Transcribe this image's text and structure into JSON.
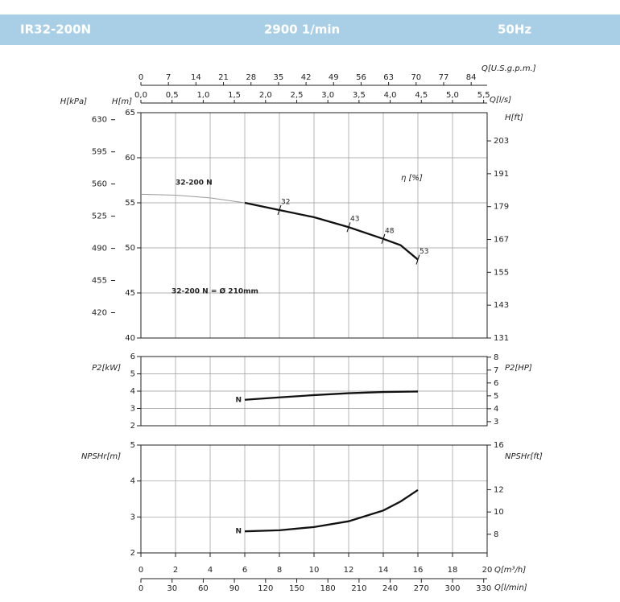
{
  "header": {
    "title": "IR32-200N",
    "speed": "2900 1/min",
    "frequency": "50Hz"
  },
  "chart_data": [
    {
      "type": "line",
      "ylabel": "H[m]",
      "ylim": [
        40,
        65
      ],
      "yticks": [
        40,
        45,
        50,
        55,
        60,
        65
      ],
      "xlim": [
        0,
        20
      ],
      "xticks": [
        0,
        2,
        4,
        6,
        8,
        10,
        12,
        14,
        16,
        18,
        20
      ],
      "grid": true,
      "extra_axes": [
        {
          "side": "left-outer",
          "label": "H[kPa]",
          "lim": [
            392.4,
            637.65
          ],
          "ticks": [
            420,
            455,
            490,
            525,
            560,
            595,
            630
          ]
        },
        {
          "side": "right",
          "label": "H[ft]",
          "lim": [
            131,
            213.3
          ],
          "ticks": [
            131,
            143,
            155,
            167,
            179,
            191,
            203
          ]
        },
        {
          "side": "top",
          "label": "Q[U.S.g.p.m.]",
          "lim": [
            0,
            88.06
          ],
          "ticks": [
            0,
            7,
            14,
            21,
            28,
            35,
            42,
            49,
            56,
            63,
            70,
            77,
            84
          ]
        },
        {
          "side": "top-inner",
          "label": "Q[l/s]",
          "lim": [
            0,
            5.556
          ],
          "ticks": [
            {
              "value": 0,
              "label": "0,0"
            },
            {
              "value": 0.5,
              "label": "0,5"
            },
            {
              "value": 1,
              "label": "1,0"
            },
            {
              "value": 1.5,
              "label": "1,5"
            },
            {
              "value": 2,
              "label": "2,0"
            },
            {
              "value": 2.5,
              "label": "2,5"
            },
            {
              "value": 3,
              "label": "3,0"
            },
            {
              "value": 3.5,
              "label": "3,5"
            },
            {
              "value": 4,
              "label": "4,0"
            },
            {
              "value": 4.5,
              "label": "4,5"
            },
            {
              "value": 5,
              "label": "5,0"
            },
            {
              "value": 5.5,
              "label": "5,5"
            }
          ]
        }
      ],
      "series": [
        {
          "color": "#999999",
          "style": "thin",
          "x": [
            0,
            2,
            4,
            6
          ],
          "values": [
            55.95,
            55.85,
            55.55,
            55.0
          ]
        },
        {
          "name": "32-200 N",
          "color": "#111111",
          "style": "bold",
          "x": [
            6,
            8,
            10,
            12,
            14,
            15,
            16
          ],
          "values": [
            55.0,
            54.2,
            53.4,
            52.3,
            51.0,
            50.3,
            48.7
          ]
        }
      ],
      "efficiency": {
        "label": "η [%]",
        "x": [
          8,
          12,
          14,
          16
        ],
        "values": [
          32,
          43,
          48,
          53
        ]
      },
      "note": "32-200 N = Ø 210mm"
    },
    {
      "type": "line",
      "ylabel": "P2[kW]",
      "ylim": [
        2,
        6
      ],
      "yticks": [
        2,
        3,
        4,
        5,
        6
      ],
      "xlim": [
        0,
        20
      ],
      "xticks": [
        0,
        2,
        4,
        6,
        8,
        10,
        12,
        14,
        16,
        18,
        20
      ],
      "grid": true,
      "extra_axes": [
        {
          "side": "right",
          "label": "P2[HP]",
          "lim": [
            2.68,
            8.05
          ],
          "ticks": [
            3,
            4,
            5,
            6,
            7,
            8
          ]
        }
      ],
      "series": [
        {
          "name": "N",
          "color": "#111111",
          "style": "bold",
          "x": [
            6,
            8,
            10,
            12,
            14,
            16
          ],
          "values": [
            3.5,
            3.64,
            3.77,
            3.88,
            3.95,
            3.98
          ]
        }
      ]
    },
    {
      "type": "line",
      "ylabel": "NPSHr[m]",
      "ylim": [
        2,
        5
      ],
      "yticks": [
        2,
        3,
        4,
        5
      ],
      "xlim": [
        0,
        20
      ],
      "xticks": [
        0,
        2,
        4,
        6,
        8,
        10,
        12,
        14,
        16,
        18,
        20
      ],
      "grid": true,
      "extra_axes": [
        {
          "side": "right",
          "label": "NPSHr[ft]",
          "lim": [
            6.33,
            16
          ],
          "ticks": [
            8,
            10,
            12,
            16
          ]
        },
        {
          "side": "bottom",
          "label": "Q[m³/h]",
          "lim": [
            0,
            20
          ],
          "ticks": [
            0,
            2,
            4,
            6,
            8,
            10,
            12,
            14,
            16,
            18,
            20
          ]
        },
        {
          "side": "bottom-outer",
          "label": "Q[l/min]",
          "lim": [
            0,
            333.33
          ],
          "ticks": [
            0,
            30,
            60,
            90,
            120,
            150,
            180,
            210,
            240,
            270,
            300,
            330
          ]
        }
      ],
      "series": [
        {
          "name": "N",
          "color": "#111111",
          "style": "bold",
          "x": [
            6,
            8,
            10,
            12,
            14,
            15,
            16
          ],
          "values": [
            2.6,
            2.63,
            2.72,
            2.88,
            3.18,
            3.43,
            3.75
          ]
        }
      ]
    }
  ]
}
